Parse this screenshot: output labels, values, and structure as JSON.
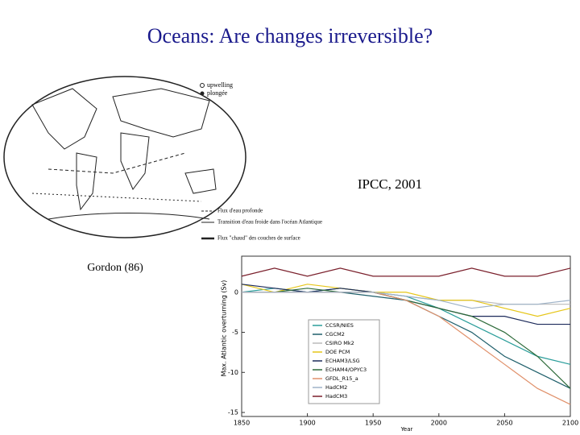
{
  "slide": {
    "title": "Oceans: Are changes irreversible?",
    "source_label": "IPCC, 2001",
    "map_caption": "Gordon (86)",
    "map_legend": {
      "upwelling": "upwelling",
      "downwelling": "plongée",
      "deep_flow": "Flux d'eau profonde",
      "transition": "Transition d'eau froide dans l'océan Atlantique",
      "warm_flow": "Flux \"chaud\" des couches de surface"
    }
  },
  "chart_data": {
    "type": "line",
    "ylabel": "Max. Atlantic overturning (Sv)",
    "xlabel": "Year",
    "x": [
      1850,
      1875,
      1900,
      1925,
      1950,
      1975,
      2000,
      2025,
      2050,
      2075,
      2100
    ],
    "xlim": [
      1850,
      2100
    ],
    "xticks": [
      1850,
      1900,
      1950,
      2000,
      2050,
      2100
    ],
    "ylim": [
      -15.5,
      4.5
    ],
    "yticks": [
      -15,
      -10,
      -5,
      0
    ],
    "series": [
      {
        "name": "CCSR/NIES",
        "color": "#2a9d9a",
        "values": [
          0,
          0.5,
          0,
          0.5,
          0,
          -0.5,
          -2,
          -4,
          -6,
          -8,
          -9
        ]
      },
      {
        "name": "CGCM2",
        "color": "#1f5f6b",
        "values": [
          0,
          0,
          0,
          0,
          -0.5,
          -1,
          -3,
          -5,
          -8,
          -10,
          -12
        ]
      },
      {
        "name": "CSIRO Mk2",
        "color": "#bbbbbb",
        "values": [
          0,
          0,
          0,
          0,
          0,
          -0.5,
          -1,
          -1,
          -1.5,
          -1.5,
          -1.5
        ]
      },
      {
        "name": "DOE PCM",
        "color": "#e6c619",
        "values": [
          1,
          0,
          1,
          0.5,
          0,
          0,
          -1,
          -1,
          -2,
          -3,
          -2
        ]
      },
      {
        "name": "ECHAM3/LSG",
        "color": "#1c2a5a",
        "values": [
          1,
          0.5,
          0,
          0.5,
          0,
          -1,
          -2,
          -3,
          -3,
          -4,
          -4
        ]
      },
      {
        "name": "ECHAM4/OPYC3",
        "color": "#2e6b3a",
        "values": [
          0,
          0,
          0.5,
          0,
          0,
          -1,
          -2,
          -3,
          -5,
          -8,
          -12
        ]
      },
      {
        "name": "GFDL_R15_a",
        "color": "#e0906a",
        "values": [
          0,
          0,
          0,
          0,
          0,
          -1,
          -3,
          -6,
          -9,
          -12,
          -14
        ]
      },
      {
        "name": "HadCM2",
        "color": "#9fb3c8",
        "values": [
          0,
          0,
          0,
          0,
          0,
          -0.5,
          -1,
          -2,
          -1.5,
          -1.5,
          -1
        ]
      },
      {
        "name": "HadCM3",
        "color": "#7a1f2b",
        "values": [
          2,
          3,
          2,
          3,
          2,
          2,
          2,
          3,
          2,
          2,
          3
        ]
      }
    ]
  }
}
